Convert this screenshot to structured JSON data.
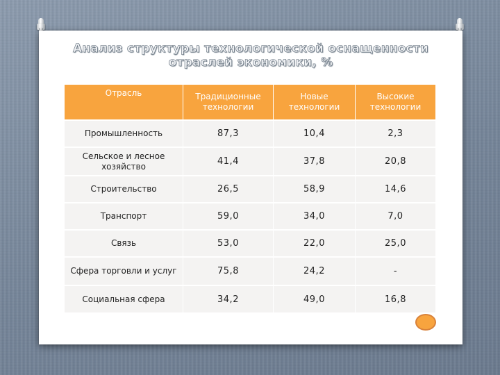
{
  "title": {
    "line1": "Анализ структуры технологической оснащенности",
    "line2": "отраслей экономики, %"
  },
  "table": {
    "headers": {
      "industry": "Отрасль",
      "traditional": "Традиционные технологии",
      "new": "Новые технологии",
      "high": "Высокие технологии"
    },
    "rows": [
      {
        "industry": "Промышленность",
        "traditional": "87,3",
        "new": "10,4",
        "high": "2,3"
      },
      {
        "industry": "Сельское и лесное хозяйство",
        "traditional": "41,4",
        "new": "37,8",
        "high": "20,8"
      },
      {
        "industry": "Строительство",
        "traditional": "26,5",
        "new": "58,9",
        "high": "14,6"
      },
      {
        "industry": "Транспорт",
        "traditional": "59,0",
        "new": "34,0",
        "high": "7,0"
      },
      {
        "industry": "Связь",
        "traditional": "53,0",
        "new": "22,0",
        "high": "25,0"
      },
      {
        "industry": "Сфера торговли и услуг",
        "traditional": "75,8",
        "new": "24,2",
        "high": "-"
      },
      {
        "industry": "Социальная сфера",
        "traditional": "34,2",
        "new": "49,0",
        "high": "16,8"
      }
    ]
  },
  "colors": {
    "header_fill": "#f8a43e",
    "row_fill": "#f4f3f2",
    "badge_fill": "#f8a43e"
  },
  "icons": {
    "pin_left": "pushpin-icon",
    "pin_right": "pushpin-icon",
    "badge": "orange-oval-icon"
  }
}
